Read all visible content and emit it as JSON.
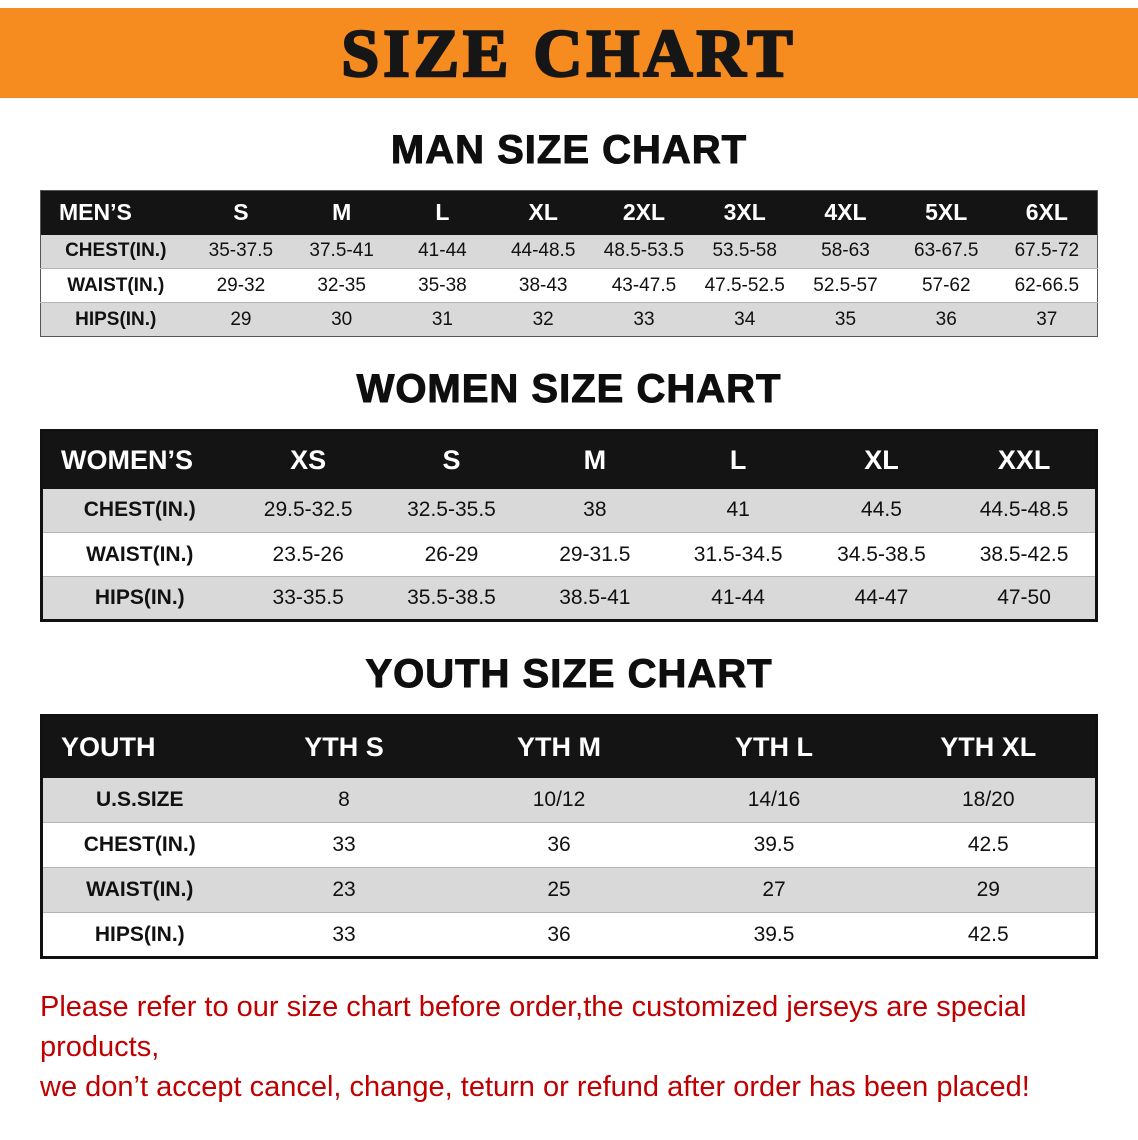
{
  "colors": {
    "banner_bg": "#F68B1F",
    "header_bg": "#141414",
    "row_stripe": "#D9D9D9",
    "disclaimer_red": "#C00000"
  },
  "banner": {
    "title": "SIZE CHART"
  },
  "sections": [
    {
      "heading": "MAN SIZE CHART",
      "table": {
        "header": [
          "MEN’S",
          "S",
          "M",
          "L",
          "XL",
          "2XL",
          "3XL",
          "4XL",
          "5XL",
          "6XL"
        ],
        "rows": [
          [
            "CHEST(IN.)",
            "35-37.5",
            "37.5-41",
            "41-44",
            "44-48.5",
            "48.5-53.5",
            "53.5-58",
            "58-63",
            "63-67.5",
            "67.5-72"
          ],
          [
            "WAIST(IN.)",
            "29-32",
            "32-35",
            "35-38",
            "38-43",
            "43-47.5",
            "47.5-52.5",
            "52.5-57",
            "57-62",
            "62-66.5"
          ],
          [
            "HIPS(IN.)",
            "29",
            "30",
            "31",
            "32",
            "33",
            "34",
            "35",
            "36",
            "37"
          ]
        ]
      }
    },
    {
      "heading": "WOMEN SIZE CHART",
      "table": {
        "header": [
          "WOMEN’S",
          "XS",
          "S",
          "M",
          "L",
          "XL",
          "XXL"
        ],
        "rows": [
          [
            "CHEST(IN.)",
            "29.5-32.5",
            "32.5-35.5",
            "38",
            "41",
            "44.5",
            "44.5-48.5"
          ],
          [
            "WAIST(IN.)",
            "23.5-26",
            "26-29",
            "29-31.5",
            "31.5-34.5",
            "34.5-38.5",
            "38.5-42.5"
          ],
          [
            "HIPS(IN.)",
            "33-35.5",
            "35.5-38.5",
            "38.5-41",
            "41-44",
            "44-47",
            "47-50"
          ]
        ]
      }
    },
    {
      "heading": "YOUTH SIZE CHART",
      "table": {
        "header": [
          "YOUTH",
          "YTH S",
          "YTH M",
          "YTH L",
          "YTH XL"
        ],
        "rows": [
          [
            "U.S.SIZE",
            "8",
            "10/12",
            "14/16",
            "18/20"
          ],
          [
            "CHEST(IN.)",
            "33",
            "36",
            "39.5",
            "42.5"
          ],
          [
            "WAIST(IN.)",
            "23",
            "25",
            "27",
            "29"
          ],
          [
            "HIPS(IN.)",
            "33",
            "36",
            "39.5",
            "42.5"
          ]
        ]
      }
    }
  ],
  "disclaimer": {
    "line1": "Please refer to our size chart before order,the customized jerseys are special products,",
    "line2": "we don’t accept cancel, change, teturn or refund after order has been placed!"
  }
}
